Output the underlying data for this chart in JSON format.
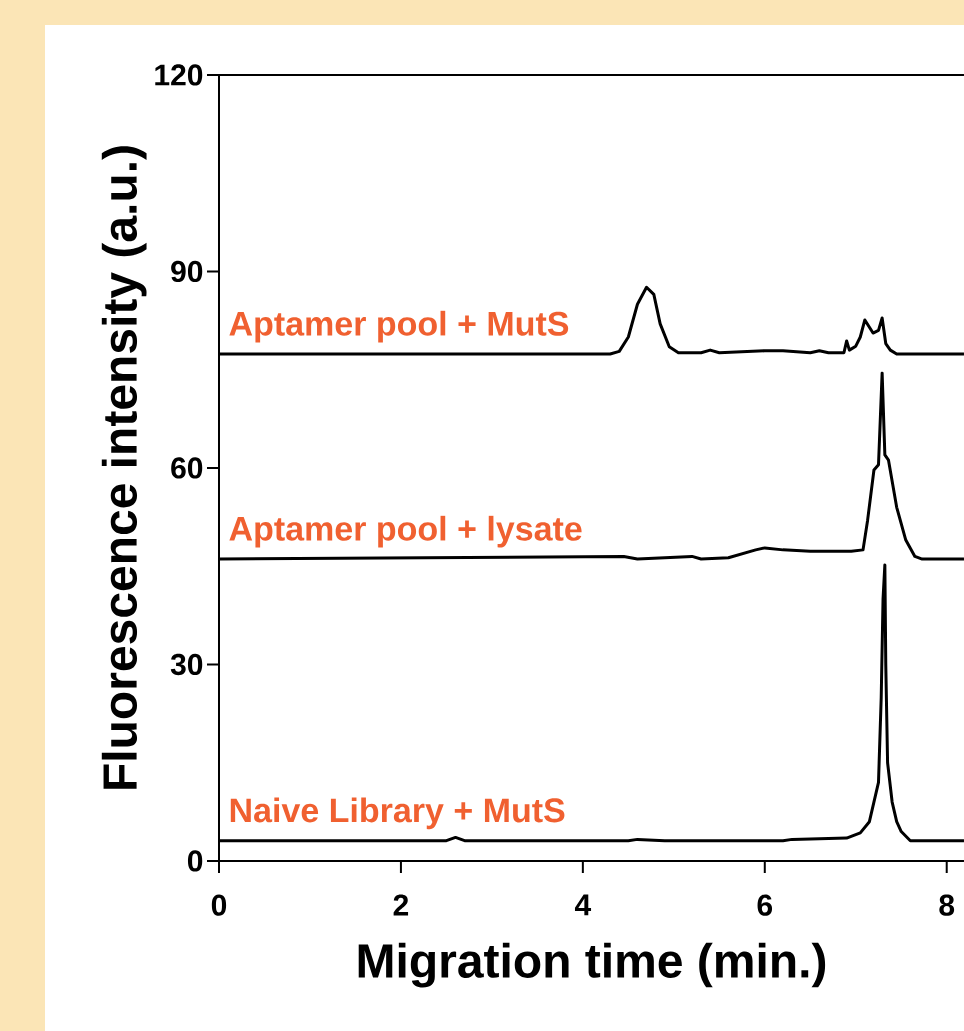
{
  "chart_data": {
    "type": "line",
    "xlabel": "Migration time (min.)",
    "ylabel": "Fluorescence intensity (a.u.)",
    "xlim": [
      0,
      8.19
    ],
    "xticks": [
      0,
      2,
      4,
      6,
      8
    ],
    "ylim": [
      0,
      120
    ],
    "yticks": [
      0,
      30,
      60,
      90,
      120
    ],
    "marker": "none",
    "line_style": "solid",
    "series": [
      {
        "name": "Aptamer pool + MutS",
        "color": "#000000",
        "x": [
          0,
          4.3,
          4.4,
          4.5,
          4.6,
          4.7,
          4.78,
          4.85,
          4.95,
          5.05,
          5.3,
          5.4,
          5.5,
          6.0,
          6.2,
          6.5,
          6.6,
          6.7,
          6.87,
          6.9,
          6.93,
          7.0,
          7.05,
          7.1,
          7.19,
          7.25,
          7.29,
          7.33,
          7.38,
          7.45,
          8.19
        ],
        "values": [
          77.4,
          77.4,
          77.8,
          80,
          85,
          87.6,
          86.5,
          82,
          78.5,
          77.6,
          77.6,
          78.0,
          77.6,
          77.9,
          77.9,
          77.6,
          77.9,
          77.6,
          77.6,
          79.4,
          78.0,
          78.6,
          80,
          82.6,
          80.6,
          81,
          82.9,
          79,
          78,
          77.4,
          77.4
        ]
      },
      {
        "name": "Aptamer pool + lysate",
        "color": "#000000",
        "x": [
          0,
          4.45,
          4.6,
          5.2,
          5.3,
          5.6,
          5.9,
          6.0,
          6.2,
          6.5,
          6.95,
          7.08,
          7.13,
          7.2,
          7.25,
          7.29,
          7.32,
          7.36,
          7.45,
          7.55,
          7.65,
          7.73,
          8.19
        ],
        "values": [
          46.1,
          46.5,
          46.1,
          46.5,
          46.1,
          46.3,
          47.5,
          47.8,
          47.5,
          47.3,
          47.3,
          47.5,
          52,
          59.7,
          60.5,
          74.5,
          62,
          61.2,
          54,
          49,
          46.5,
          46.1,
          46.1
        ]
      },
      {
        "name": "Naive Library + MutS",
        "color": "#000000",
        "x": [
          0,
          2.5,
          2.6,
          2.7,
          4.5,
          4.6,
          4.9,
          6.2,
          6.3,
          6.9,
          7.05,
          7.15,
          7.25,
          7.28,
          7.3,
          7.32,
          7.33,
          7.35,
          7.4,
          7.45,
          7.5,
          7.6,
          8.19
        ],
        "values": [
          3.1,
          3.1,
          3.6,
          3.1,
          3.1,
          3.3,
          3.1,
          3.1,
          3.3,
          3.5,
          4.3,
          6,
          12,
          25,
          40,
          45.2,
          30,
          15,
          9,
          6,
          4.5,
          3.1,
          3.1
        ]
      }
    ]
  }
}
